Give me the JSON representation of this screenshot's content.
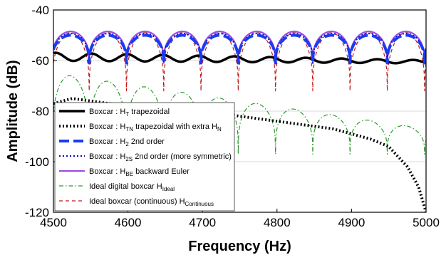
{
  "chart_data": {
    "type": "line",
    "xlabel": "Frequency (Hz)",
    "ylabel": "Amplitude (dB)",
    "xlim": [
      4500,
      5000
    ],
    "ylim": [
      -120,
      -40
    ],
    "xticks": [
      4500,
      4600,
      4700,
      4800,
      4900,
      5000
    ],
    "yticks": [
      -40,
      -60,
      -80,
      -100,
      -120
    ],
    "grid": "horizontal",
    "legend_position": "lower-left",
    "series": [
      {
        "name": "Boxcar : H_T trapezoidal",
        "label_main": "Boxcar : H",
        "label_sub": "T",
        "label_rest": "  trapezoidal",
        "color": "#000000",
        "style": "solid",
        "width": 3.5,
        "model": {
          "kind": "ripple",
          "base_start": -58.5,
          "base_end": -60.5,
          "amp": 1.6,
          "period": 48
        }
      },
      {
        "name": "Boxcar : H_TN trapezoidal with extra H_N",
        "label_main": "Boxcar : H",
        "label_sub": "TN",
        "label_rest": " trapezoidal with extra H",
        "label_sub2": "N",
        "color": "#000000",
        "style": "dotted",
        "width": 4,
        "points": [
          [
            4500,
            -77
          ],
          [
            4525,
            -75
          ],
          [
            4550,
            -76
          ],
          [
            4575,
            -77
          ],
          [
            4600,
            -77.5
          ],
          [
            4625,
            -78
          ],
          [
            4650,
            -78
          ],
          [
            4675,
            -79
          ],
          [
            4700,
            -80
          ],
          [
            4725,
            -81
          ],
          [
            4750,
            -82
          ],
          [
            4775,
            -83
          ],
          [
            4800,
            -84
          ],
          [
            4825,
            -85
          ],
          [
            4850,
            -86
          ],
          [
            4875,
            -87
          ],
          [
            4900,
            -89
          ],
          [
            4925,
            -91
          ],
          [
            4950,
            -94
          ],
          [
            4975,
            -102
          ],
          [
            4990,
            -110
          ],
          [
            5000,
            -120
          ]
        ]
      },
      {
        "name": "Boxcar : H_2 2nd order",
        "label_main": "Boxcar : H",
        "label_sub": "2",
        "label_rest": " 2nd order",
        "color": "#1a3cf0",
        "style": "dashed",
        "width": 4,
        "model": {
          "kind": "lobes",
          "peak": -50,
          "trough": -61
        }
      },
      {
        "name": "Boxcar : H_2S 2nd order (more symmetric)",
        "label_main": "Boxcar : H",
        "label_sub": "2S",
        "label_rest": " 2nd order (more symmetric)",
        "color": "#0d0dc8",
        "style": "dotted",
        "width": 2.2,
        "model": {
          "kind": "lobes",
          "peak": -49.3,
          "trough": -61
        }
      },
      {
        "name": "Boxcar : H_BE backward Euler",
        "label_main": "Boxcar : H",
        "label_sub": "BE",
        "label_rest": " backward Euler",
        "color": "#9b4de0",
        "style": "solid",
        "width": 2.2,
        "model": {
          "kind": "lobes",
          "peak": -48.5,
          "trough": -61
        }
      },
      {
        "name": "Ideal digital boxcar H_Ideal",
        "label_main": "Ideal digital boxcar H",
        "label_sub": "Ideal",
        "label_rest": "",
        "color": "#2e9a2e",
        "style": "dashdot",
        "width": 1.2,
        "model": {
          "kind": "lobes_decay",
          "peak_start": -65,
          "peak_end": -87,
          "trough": -97
        }
      },
      {
        "name": "Ideal boxcar (continuous) H_Continuous",
        "label_main": "Ideal boxcar (continuous) H",
        "label_sub": "Continuous",
        "label_rest": "",
        "color": "#c01818",
        "style": "dashed_thin",
        "width": 1.2,
        "model": {
          "kind": "lobes",
          "peak": -49,
          "trough": -72
        }
      }
    ]
  }
}
